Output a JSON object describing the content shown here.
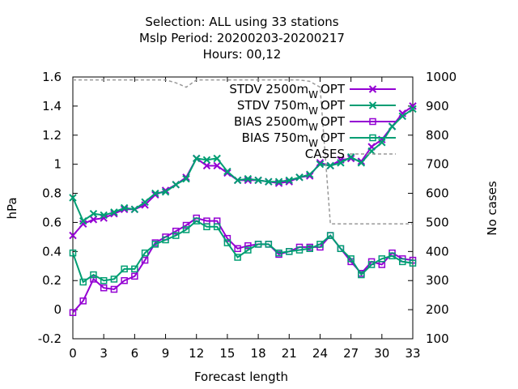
{
  "chart_data": {
    "type": "line",
    "title_lines": [
      "Selection: ALL using    33 stations",
      "Mslp   Period: 20200203-20200217",
      "Hours:  00,12"
    ],
    "xlabel": "Forecast length",
    "ylabel": "hPa",
    "y2label": "No cases",
    "xlim": [
      0,
      33
    ],
    "ylim": [
      -0.2,
      1.6
    ],
    "y2lim": [
      100,
      1000
    ],
    "x_ticks": [
      "0",
      "3",
      "6",
      "9",
      "12",
      "15",
      "18",
      "21",
      "24",
      "27",
      "30",
      "33"
    ],
    "y_ticks": [
      "-0.2",
      "0",
      "0.2",
      "0.4",
      "0.6",
      "0.8",
      "1",
      "1.2",
      "1.4",
      "1.6"
    ],
    "y2_ticks": [
      "100",
      "200",
      "300",
      "400",
      "500",
      "600",
      "700",
      "800",
      "900",
      "1000"
    ],
    "grid": false,
    "legend_position": "top-right",
    "x": [
      0,
      1,
      2,
      3,
      4,
      5,
      6,
      7,
      8,
      9,
      10,
      11,
      12,
      13,
      14,
      15,
      16,
      17,
      18,
      19,
      20,
      21,
      22,
      23,
      24,
      25,
      26,
      27,
      28,
      29,
      30,
      31,
      32,
      33
    ],
    "series": [
      {
        "name": "STDV 2500m",
        "name_sub": "W",
        "name_suffix": "OPT",
        "marker": "x",
        "color": "#9400d3",
        "axis": "y1",
        "values": [
          0.51,
          0.59,
          0.62,
          0.63,
          0.66,
          0.69,
          0.69,
          0.72,
          0.79,
          0.82,
          0.86,
          0.91,
          1.04,
          0.99,
          0.99,
          0.94,
          0.89,
          0.89,
          0.89,
          0.88,
          0.87,
          0.88,
          0.91,
          0.92,
          1.01,
          0.99,
          1.03,
          1.04,
          1.02,
          1.12,
          1.17,
          1.26,
          1.35,
          1.4
        ]
      },
      {
        "name": "STDV 750m",
        "name_sub": "W",
        "name_suffix": "OPT",
        "marker": "x",
        "color": "#009e73",
        "axis": "y1",
        "values": [
          0.77,
          0.61,
          0.66,
          0.65,
          0.67,
          0.7,
          0.69,
          0.74,
          0.8,
          0.81,
          0.86,
          0.9,
          1.04,
          1.03,
          1.04,
          0.95,
          0.89,
          0.9,
          0.89,
          0.88,
          0.88,
          0.89,
          0.91,
          0.93,
          1.0,
          0.99,
          1.01,
          1.05,
          1.01,
          1.09,
          1.15,
          1.26,
          1.33,
          1.38
        ]
      },
      {
        "name": "BIAS 2500m",
        "name_sub": "W",
        "name_suffix": "OPT",
        "marker": "square",
        "color": "#9400d3",
        "axis": "y1",
        "values": [
          -0.02,
          0.06,
          0.21,
          0.15,
          0.14,
          0.2,
          0.23,
          0.34,
          0.46,
          0.5,
          0.54,
          0.58,
          0.63,
          0.61,
          0.61,
          0.49,
          0.42,
          0.44,
          0.45,
          0.45,
          0.38,
          0.4,
          0.43,
          0.43,
          0.43,
          0.51,
          0.42,
          0.33,
          0.25,
          0.33,
          0.31,
          0.39,
          0.35,
          0.34
        ]
      },
      {
        "name": "BIAS 750m",
        "name_sub": "W",
        "name_suffix": "OPT",
        "marker": "square",
        "color": "#009e73",
        "axis": "y1",
        "values": [
          0.39,
          0.19,
          0.24,
          0.2,
          0.21,
          0.28,
          0.28,
          0.39,
          0.45,
          0.48,
          0.51,
          0.55,
          0.61,
          0.57,
          0.57,
          0.46,
          0.36,
          0.41,
          0.45,
          0.45,
          0.39,
          0.4,
          0.41,
          0.42,
          0.45,
          0.51,
          0.42,
          0.35,
          0.24,
          0.31,
          0.35,
          0.37,
          0.33,
          0.32
        ]
      },
      {
        "name": "CASES",
        "marker": "none",
        "color": "#999999",
        "dashed": true,
        "axis": "y2",
        "values": [
          990,
          990,
          990,
          990,
          990,
          990,
          990,
          990,
          990,
          990,
          980,
          965,
          990,
          990,
          990,
          990,
          990,
          990,
          990,
          990,
          990,
          990,
          990,
          985,
          965,
          495,
          495,
          495,
          495,
          495,
          495,
          495,
          495,
          495
        ]
      }
    ]
  }
}
